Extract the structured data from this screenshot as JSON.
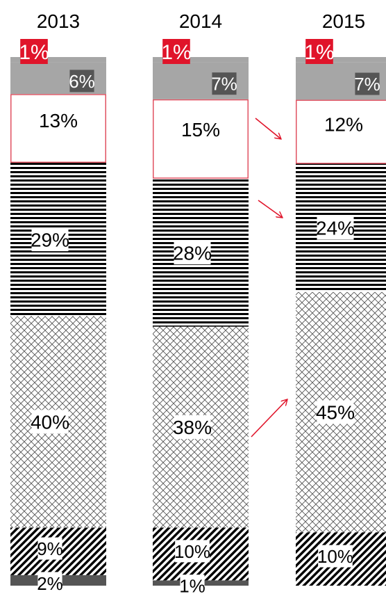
{
  "chart_data": {
    "type": "bar",
    "stacked": true,
    "percent": true,
    "categories": [
      "2013",
      "2014",
      "2015"
    ],
    "series": [
      {
        "values": [
          2,
          1,
          0
        ],
        "labels": [
          "2%",
          "1%",
          ""
        ],
        "style": "dark"
      },
      {
        "values": [
          9,
          10,
          10
        ],
        "labels": [
          "9%",
          "10%",
          "10%"
        ],
        "style": "diagonal"
      },
      {
        "values": [
          40,
          38,
          45
        ],
        "labels": [
          "40%",
          "38%",
          "45%"
        ],
        "style": "crosshatch"
      },
      {
        "values": [
          29,
          28,
          24
        ],
        "labels": [
          "29%",
          "28%",
          "24%"
        ],
        "style": "horizontal-lines"
      },
      {
        "values": [
          13,
          15,
          12
        ],
        "labels": [
          "13%",
          "15%",
          "12%"
        ],
        "style": "white-red-border"
      },
      {
        "values": [
          6,
          7,
          7
        ],
        "labels": [
          "6%",
          "7%",
          "7%"
        ],
        "style": "gray"
      },
      {
        "values": [
          1,
          1,
          1
        ],
        "labels": [
          "1%",
          "1%",
          "1%"
        ],
        "style": "red-badge"
      }
    ],
    "annotations": [
      {
        "type": "arrow",
        "from_category": "2014",
        "to_category": "2015",
        "series": "white-red-border"
      },
      {
        "type": "arrow",
        "from_category": "2014",
        "to_category": "2015",
        "series": "horizontal-lines"
      },
      {
        "type": "arrow",
        "from_category": "2014",
        "to_category": "2015",
        "series": "crosshatch"
      }
    ],
    "colors": {
      "accent": "#e0142a",
      "gray": "#a6a6a6",
      "dark": "#555555",
      "border": "#e05060"
    },
    "legend": "none",
    "grid": false
  }
}
